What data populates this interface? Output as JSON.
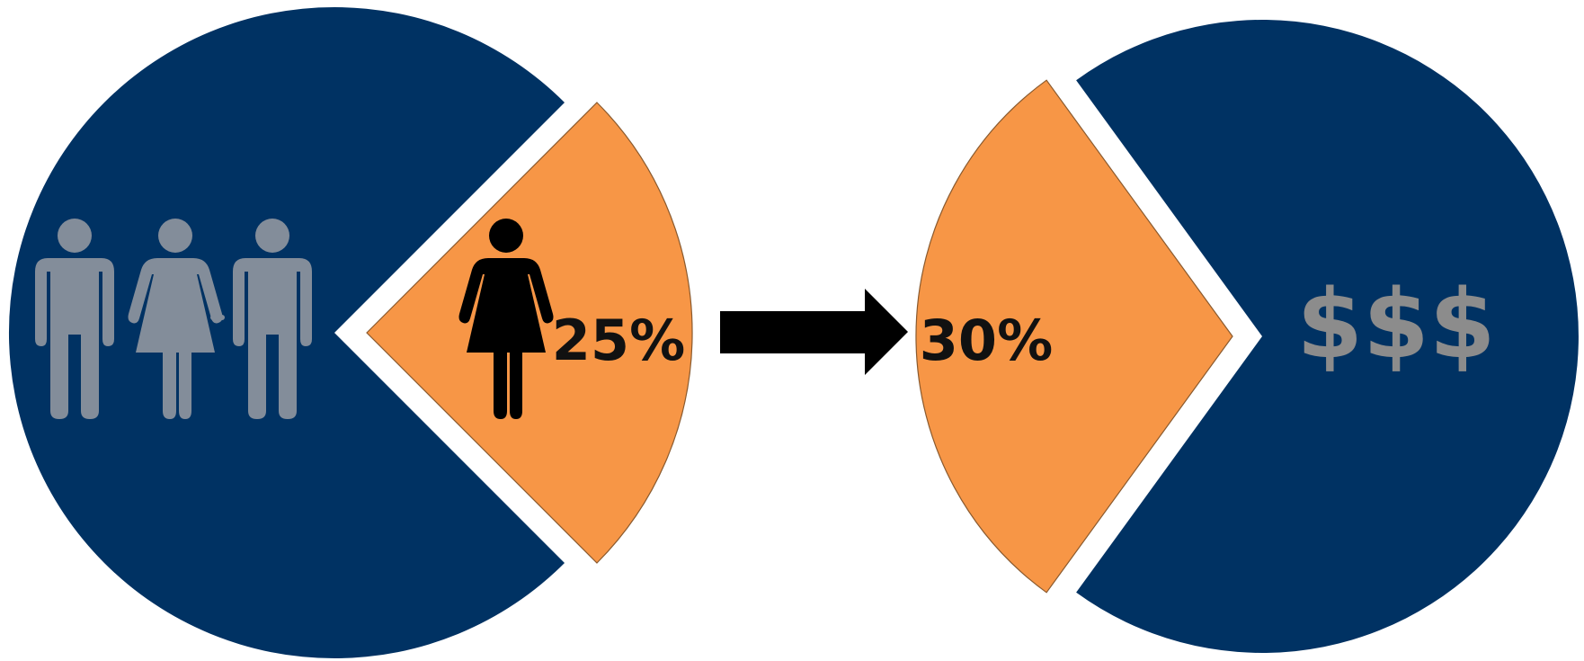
{
  "chart_data": [
    {
      "type": "pie",
      "slices": [
        {
          "name": "",
          "value": 75,
          "color": "#003263"
        },
        {
          "name": "",
          "value": 25,
          "color": "#f79646"
        }
      ],
      "labels": {
        "highlight": "25%"
      },
      "icons": [
        "man-icon",
        "woman-icon",
        "man-icon",
        "woman-highlight-icon"
      ]
    },
    {
      "type": "pie",
      "slices": [
        {
          "name": "",
          "value": 30,
          "color": "#f79646"
        },
        {
          "name": "",
          "value": 70,
          "color": "#003263"
        }
      ],
      "labels": {
        "highlight": "30%",
        "symbol": "$$$"
      }
    }
  ],
  "colors": {
    "navy": "#003263",
    "orange": "#f79646",
    "people_gray": "#838d9a",
    "dollar_gray": "#8c8c8c",
    "arrow": "#000000"
  },
  "connector": {
    "icon": "right-arrow-icon"
  }
}
